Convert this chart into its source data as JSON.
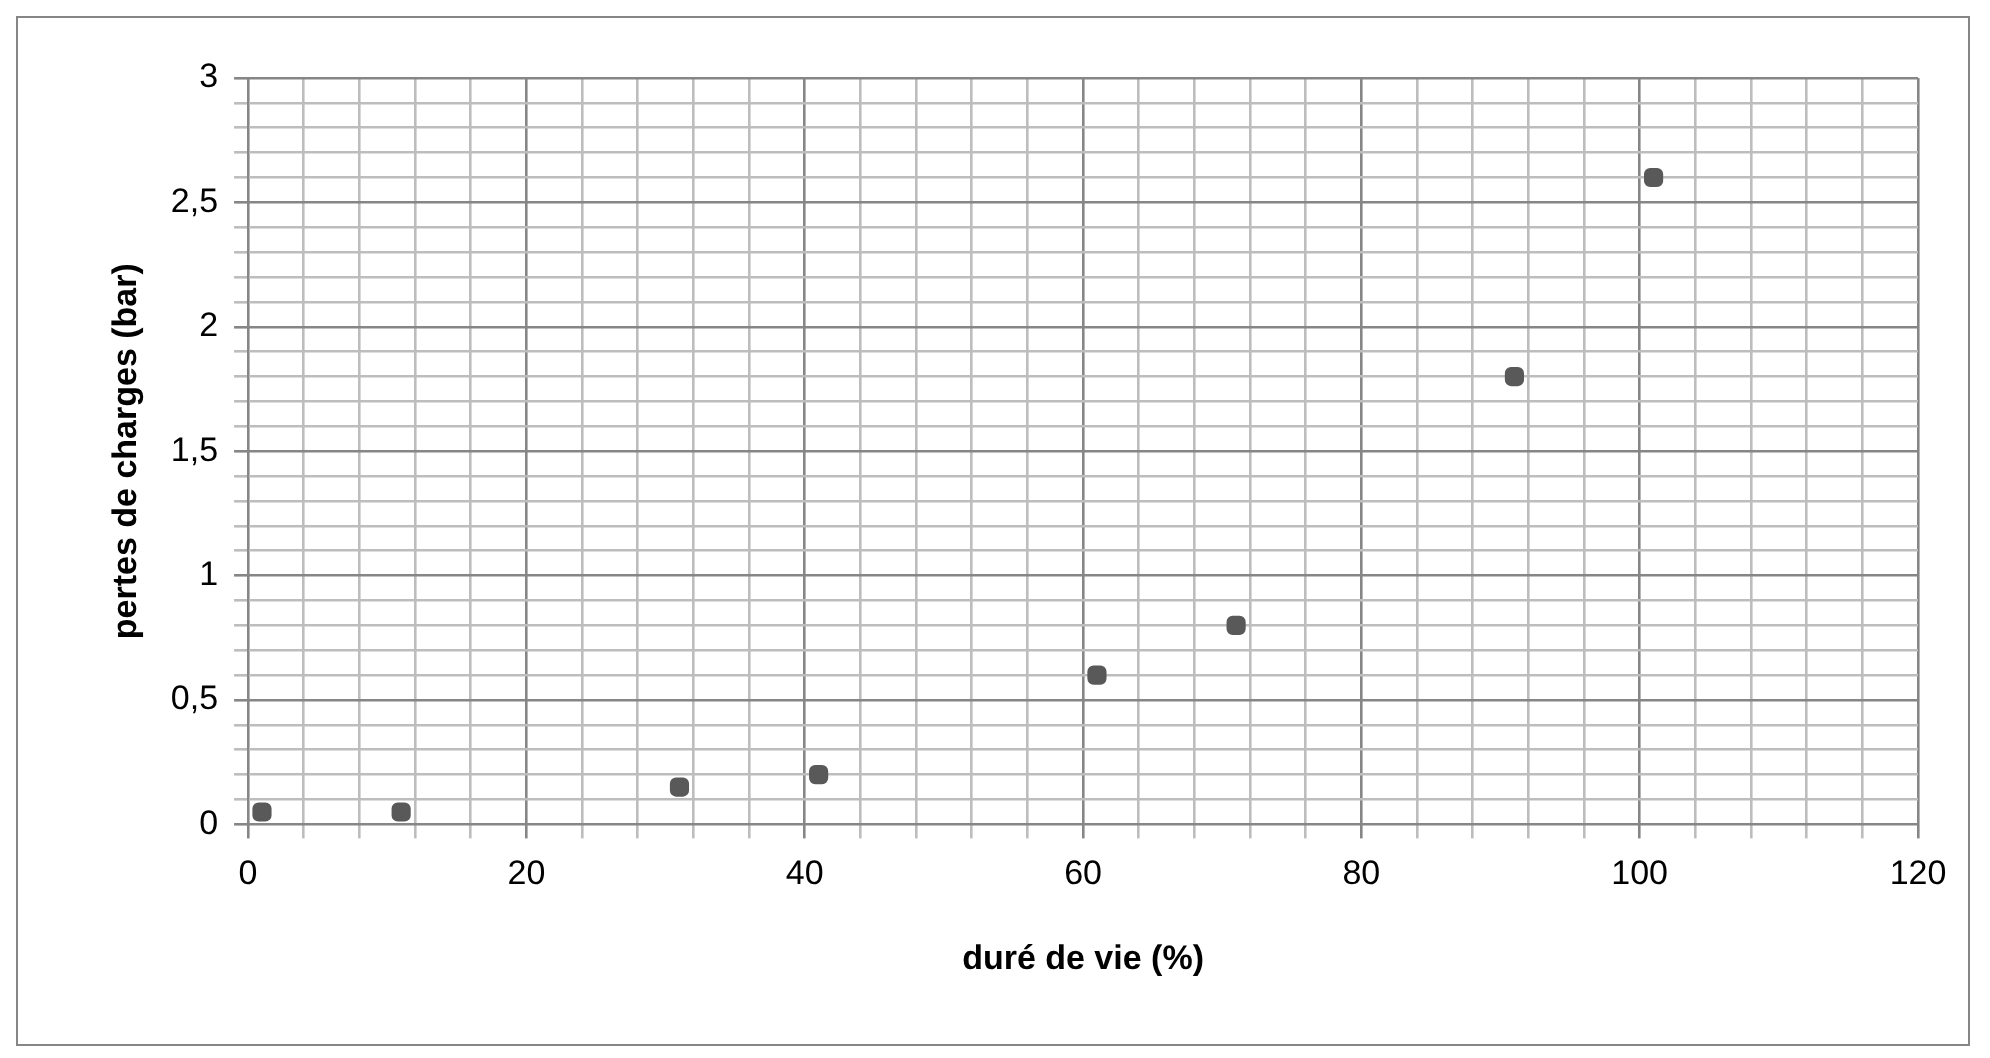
{
  "chart_data": {
    "type": "scatter",
    "xlabel": "duré de vie (%)",
    "ylabel": "pertes de charges (bar)",
    "x": [
      1,
      11,
      31,
      41,
      61,
      71,
      91,
      101
    ],
    "series": [
      {
        "color": "#595959",
        "values": [
          0.05,
          0.05,
          0.15,
          0.2,
          0.6,
          0.8,
          1.8,
          2.6
        ]
      }
    ],
    "marker": "square",
    "grid": true,
    "legend": false,
    "xlim": [
      0,
      120
    ],
    "xticks": [
      0,
      {
        "value": 4,
        "label": null
      },
      {
        "value": 8,
        "label": null
      },
      {
        "value": 12,
        "label": null
      },
      {
        "value": 16,
        "label": null
      },
      20,
      {
        "value": 24,
        "label": null
      },
      {
        "value": 28,
        "label": null
      },
      {
        "value": 32,
        "label": null
      },
      {
        "value": 36,
        "label": null
      },
      40,
      {
        "value": 44,
        "label": null
      },
      {
        "value": 48,
        "label": null
      },
      {
        "value": 52,
        "label": null
      },
      {
        "value": 56,
        "label": null
      },
      60,
      {
        "value": 64,
        "label": null
      },
      {
        "value": 68,
        "label": null
      },
      {
        "value": 72,
        "label": null
      },
      {
        "value": 76,
        "label": null
      },
      80,
      {
        "value": 84,
        "label": null
      },
      {
        "value": 88,
        "label": null
      },
      {
        "value": 92,
        "label": null
      },
      {
        "value": 96,
        "label": null
      },
      100,
      {
        "value": 104,
        "label": null
      },
      {
        "value": 108,
        "label": null
      },
      {
        "value": 112,
        "label": null
      },
      {
        "value": 116,
        "label": null
      },
      120
    ],
    "ylim": [
      0,
      3
    ],
    "yticks": [
      0,
      {
        "value": 0.1,
        "label": null
      },
      {
        "value": 0.2,
        "label": null
      },
      {
        "value": 0.3,
        "label": null
      },
      {
        "value": 0.4,
        "label": null
      },
      {
        "value": 0.5,
        "label": "0,5"
      },
      {
        "value": 0.6,
        "label": null
      },
      {
        "value": 0.7,
        "label": null
      },
      {
        "value": 0.8,
        "label": null
      },
      {
        "value": 0.9,
        "label": null
      },
      1,
      {
        "value": 1.1,
        "label": null
      },
      {
        "value": 1.2,
        "label": null
      },
      {
        "value": 1.3,
        "label": null
      },
      {
        "value": 1.4,
        "label": null
      },
      {
        "value": 1.5,
        "label": "1,5"
      },
      {
        "value": 1.6,
        "label": null
      },
      {
        "value": 1.7,
        "label": null
      },
      {
        "value": 1.8,
        "label": null
      },
      {
        "value": 1.9,
        "label": null
      },
      2,
      {
        "value": 2.1,
        "label": null
      },
      {
        "value": 2.2,
        "label": null
      },
      {
        "value": 2.3,
        "label": null
      },
      {
        "value": 2.4,
        "label": null
      },
      {
        "value": 2.5,
        "label": "2,5"
      },
      {
        "value": 2.6,
        "label": null
      },
      {
        "value": 2.7,
        "label": null
      },
      {
        "value": 2.8,
        "label": null
      },
      {
        "value": 2.9,
        "label": null
      },
      3
    ]
  }
}
